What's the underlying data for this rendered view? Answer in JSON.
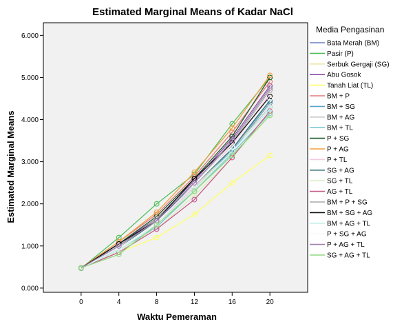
{
  "chart_data": {
    "type": "line",
    "title": "Estimated Marginal Means of Kadar NaCl",
    "xlabel": "Waktu Pemeraman",
    "ylabel": "Estimated Marginal Means",
    "x": [
      0,
      4,
      8,
      12,
      16,
      20
    ],
    "xticks": [
      "0",
      "4",
      "8",
      "12",
      "16",
      "20"
    ],
    "xlim": [
      -4,
      24
    ],
    "ylim": [
      -0.1,
      6.3
    ],
    "yticks": [
      0,
      1,
      2,
      3,
      4,
      5,
      6
    ],
    "yticklabels": [
      "0.000",
      "1.000",
      "2.000",
      "3.000",
      "4.000",
      "5.000",
      "6.000"
    ],
    "grid": false,
    "legend_title": "Media Pengasinan",
    "legend_position": "right",
    "series": [
      {
        "name": "Bata Merah (BM)",
        "color": "#6b7fc9",
        "values": [
          0.48,
          0.95,
          1.55,
          2.4,
          3.35,
          4.45
        ]
      },
      {
        "name": "Pasir (P)",
        "color": "#4fbf5a",
        "values": [
          0.47,
          1.2,
          2.0,
          2.7,
          3.9,
          5.0
        ]
      },
      {
        "name": "Serbuk Gergaji (SG)",
        "color": "#f0e6a8",
        "values": [
          0.48,
          0.9,
          1.5,
          2.35,
          3.3,
          4.4
        ]
      },
      {
        "name": "Abu Gosok",
        "color": "#8e4fa8",
        "values": [
          0.48,
          1.05,
          1.65,
          2.55,
          3.55,
          4.8
        ]
      },
      {
        "name": "Tanah Liat (TL)",
        "color": "#ffff66",
        "values": [
          0.48,
          0.85,
          1.2,
          1.75,
          2.5,
          3.15
        ]
      },
      {
        "name": "BM + P",
        "color": "#e87a7a",
        "values": [
          0.48,
          1.1,
          1.75,
          2.65,
          3.7,
          4.9
        ]
      },
      {
        "name": "BM + SG",
        "color": "#58a6c8",
        "values": [
          0.48,
          0.95,
          1.6,
          2.45,
          3.25,
          4.4
        ]
      },
      {
        "name": "BM + AG",
        "color": "#c8c8c8",
        "values": [
          0.48,
          1.0,
          1.55,
          2.4,
          3.3,
          4.3
        ]
      },
      {
        "name": "BM + TL",
        "color": "#78c8d8",
        "values": [
          0.48,
          0.9,
          1.45,
          2.3,
          3.2,
          4.15
        ]
      },
      {
        "name": "P + SG",
        "color": "#1f5a2a",
        "values": [
          0.48,
          1.05,
          1.7,
          2.6,
          3.6,
          5.0
        ]
      },
      {
        "name": "P + AG",
        "color": "#f0a040",
        "values": [
          0.48,
          1.1,
          1.8,
          2.75,
          3.8,
          5.05
        ]
      },
      {
        "name": "P + TL",
        "color": "#f5c8e0",
        "values": [
          0.48,
          0.95,
          1.55,
          2.4,
          3.4,
          4.6
        ]
      },
      {
        "name": "SG + AG",
        "color": "#3a7a80",
        "values": [
          0.48,
          0.95,
          1.6,
          2.45,
          3.3,
          4.45
        ]
      },
      {
        "name": "SG + TL",
        "color": "#d8f0c0",
        "values": [
          0.48,
          0.9,
          1.4,
          2.2,
          3.1,
          4.1
        ]
      },
      {
        "name": "AG + TL",
        "color": "#c85a8a",
        "values": [
          0.48,
          0.85,
          1.4,
          2.1,
          3.1,
          4.2
        ]
      },
      {
        "name": "BM + P + SG",
        "color": "#a8a8a8",
        "values": [
          0.48,
          1.0,
          1.65,
          2.5,
          3.45,
          4.7
        ]
      },
      {
        "name": "BM + SG + AG",
        "color": "#111111",
        "values": [
          0.48,
          1.05,
          1.6,
          2.6,
          3.45,
          4.55
        ]
      },
      {
        "name": "BM + AG + TL",
        "color": "#c0f0e8",
        "values": [
          0.48,
          0.9,
          1.5,
          2.35,
          3.25,
          4.25
        ]
      },
      {
        "name": "P + SG + AG",
        "color": "#f8f8f8",
        "values": [
          0.48,
          0.95,
          1.55,
          2.45,
          3.35,
          4.5
        ]
      },
      {
        "name": "P + AG + TL",
        "color": "#a080b0",
        "values": [
          0.48,
          1.0,
          1.6,
          2.5,
          3.5,
          4.75
        ]
      },
      {
        "name": "SG + AG + TL",
        "color": "#90d880",
        "values": [
          0.48,
          0.8,
          1.5,
          2.3,
          3.15,
          4.1
        ]
      }
    ]
  }
}
